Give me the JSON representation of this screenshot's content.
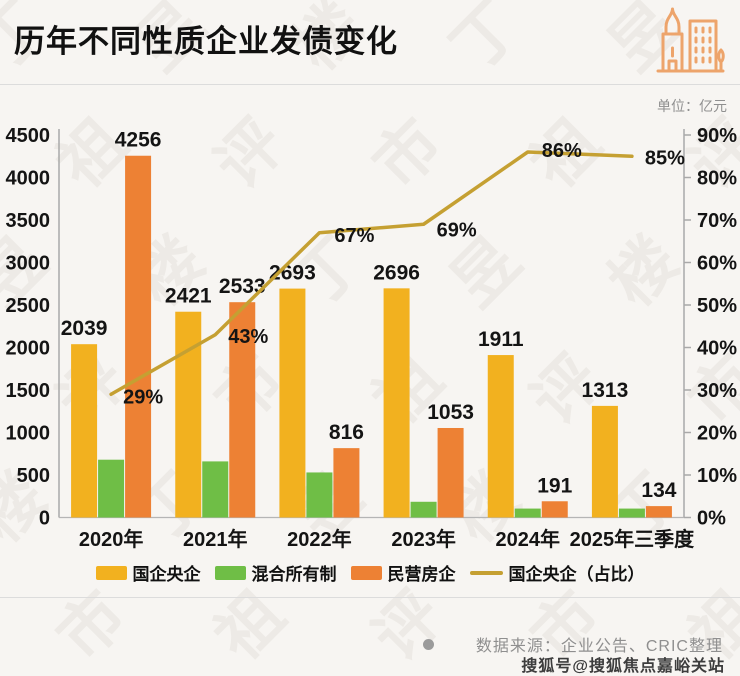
{
  "header": {
    "title": "历年不同性质企业发债变化"
  },
  "unit_label": "单位：亿元",
  "chart_data": {
    "type": "bar+line",
    "title": "历年不同性质企业发债变化",
    "unit": "亿元",
    "categories": [
      "2020年",
      "2021年",
      "2022年",
      "2023年",
      "2024年",
      "2025年三季度"
    ],
    "series": [
      {
        "name": "国企央企",
        "color": "#F2B11F",
        "values": [
          2039,
          2421,
          2693,
          2696,
          1911,
          1313
        ],
        "show_labels": true
      },
      {
        "name": "混合所有制",
        "color": "#6FBE46",
        "values": [
          680,
          660,
          530,
          185,
          105,
          105
        ],
        "show_labels": false
      },
      {
        "name": "民营房企",
        "color": "#ED8134",
        "values": [
          4256,
          2533,
          816,
          1053,
          191,
          134
        ],
        "show_labels": true
      }
    ],
    "line": {
      "name": "国企央企（占比）",
      "color": "#C5A032",
      "values": [
        29,
        43,
        67,
        69,
        86,
        85
      ],
      "suffix": "%"
    },
    "left_axis": {
      "min": 0,
      "max": 4500,
      "step": 500
    },
    "right_axis": {
      "min": 0,
      "max": 90,
      "step": 10,
      "suffix": "%"
    },
    "grid": false,
    "legend_position": "bottom"
  },
  "footer": {
    "source": "数据来源：企业公告、CRIC整理",
    "account": "搜狐号@搜狐焦点嘉峪关站"
  },
  "watermark": {
    "text": "丁祖昱评楼市"
  },
  "colors": {
    "background": "#f7f5f2",
    "bar_yellow": "#F2B11F",
    "bar_green": "#6FBE46",
    "bar_orange": "#ED8134",
    "line_gold": "#C5A032",
    "icon_orange": "#EDA46B",
    "text_gray": "#8f8f8f"
  }
}
